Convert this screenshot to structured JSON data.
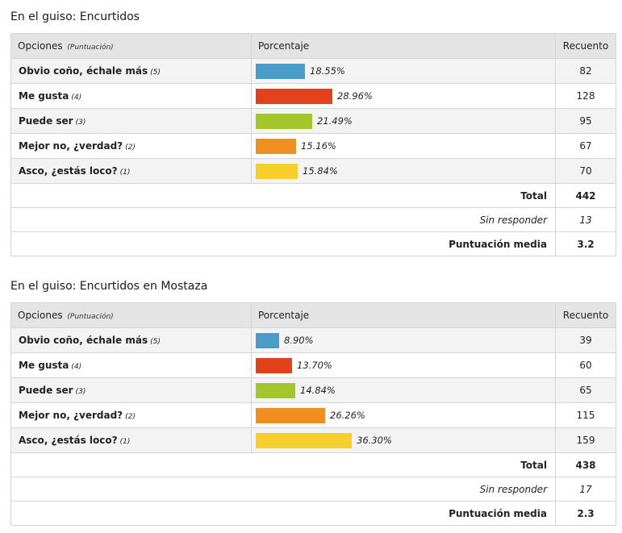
{
  "headers": {
    "options": "Opciones",
    "options_note": "(Puntuación)",
    "percentage": "Porcentaje",
    "count": "Recuento"
  },
  "summary_labels": {
    "total": "Total",
    "no_answer": "Sin responder",
    "average": "Puntuación media"
  },
  "colors": [
    "#4a9cc9",
    "#e2421b",
    "#a2c62c",
    "#ef8f1f",
    "#f7cf2b"
  ],
  "chart_data": [
    {
      "type": "bar",
      "title": "En el guiso: Encurtidos",
      "categories": [
        "Obvio coño, échale más",
        "Me gusta",
        "Puede ser",
        "Mejor no, ¿verdad?",
        "Asco, ¿estás loco?"
      ],
      "scores": [
        "(5)",
        "(4)",
        "(3)",
        "(2)",
        "(1)"
      ],
      "percentages": [
        18.55,
        28.96,
        21.49,
        15.16,
        15.84
      ],
      "percent_labels": [
        "18.55%",
        "28.96%",
        "21.49%",
        "15.16%",
        "15.84%"
      ],
      "counts": [
        82,
        128,
        95,
        67,
        70
      ],
      "total": 442,
      "no_answer": 13,
      "average": 3.2
    },
    {
      "type": "bar",
      "title": "En el guiso: Encurtidos en Mostaza",
      "categories": [
        "Obvio coño, échale más",
        "Me gusta",
        "Puede ser",
        "Mejor no, ¿verdad?",
        "Asco, ¿estás loco?"
      ],
      "scores": [
        "(5)",
        "(4)",
        "(3)",
        "(2)",
        "(1)"
      ],
      "percentages": [
        8.9,
        13.7,
        14.84,
        26.26,
        36.3
      ],
      "percent_labels": [
        "8.90%",
        "13.70%",
        "14.84%",
        "26.26%",
        "36.30%"
      ],
      "counts": [
        39,
        60,
        65,
        115,
        159
      ],
      "total": 438,
      "no_answer": 17,
      "average": 2.3
    }
  ]
}
